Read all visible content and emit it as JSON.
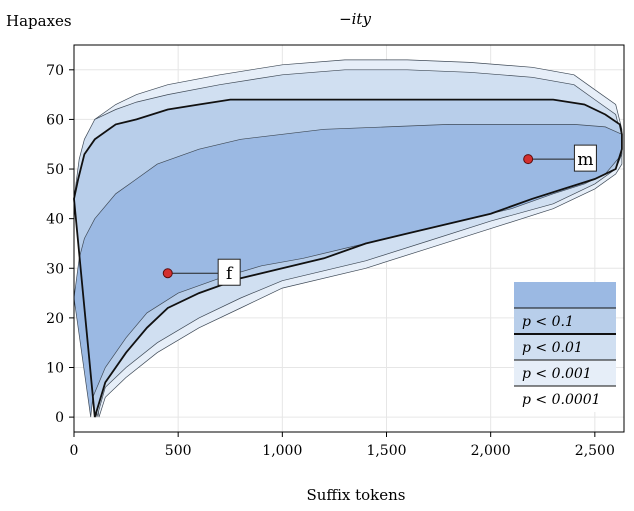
{
  "chart_data": {
    "type": "area",
    "title": "−ity",
    "xlabel": "Suffix tokens",
    "ylabel": "Hapaxes",
    "xlim": [
      0,
      2640
    ],
    "ylim": [
      -3,
      75
    ],
    "xticks": [
      0,
      500,
      1000,
      1500,
      2000,
      2500
    ],
    "xtick_labels": [
      "0",
      "500",
      "1,000",
      "1,500",
      "2,000",
      "2,500"
    ],
    "yticks": [
      0,
      10,
      20,
      30,
      40,
      50,
      60,
      70
    ],
    "ytick_labels": [
      "0",
      "10",
      "20",
      "30",
      "40",
      "50",
      "60",
      "70"
    ],
    "grid": true,
    "legend_position": "bottom-right",
    "bands": [
      {
        "name": "p < 0.0001",
        "color": "#e6eef8",
        "upper": [
          [
            0,
            43
          ],
          [
            25,
            50
          ],
          [
            50,
            55
          ],
          [
            100,
            60
          ],
          [
            200,
            63
          ],
          [
            300,
            65
          ],
          [
            450,
            67
          ],
          [
            700,
            69
          ],
          [
            1000,
            71
          ],
          [
            1300,
            72
          ],
          [
            1600,
            72
          ],
          [
            1900,
            71.5
          ],
          [
            2200,
            70.5
          ],
          [
            2400,
            69
          ],
          [
            2500,
            66
          ],
          [
            2600,
            63
          ],
          [
            2630,
            58
          ]
        ],
        "lower": [
          [
            2630,
            51
          ],
          [
            2600,
            49
          ],
          [
            2500,
            46
          ],
          [
            2300,
            42
          ],
          [
            2000,
            38
          ],
          [
            1700,
            34
          ],
          [
            1400,
            30
          ],
          [
            1000,
            26
          ],
          [
            800,
            22
          ],
          [
            600,
            18
          ],
          [
            400,
            13
          ],
          [
            250,
            8
          ],
          [
            150,
            4
          ],
          [
            120,
            0
          ]
        ]
      },
      {
        "name": "p < 0.001",
        "color": "#d0dff1",
        "upper": [
          [
            0,
            44
          ],
          [
            25,
            52
          ],
          [
            50,
            56
          ],
          [
            100,
            60
          ],
          [
            200,
            62
          ],
          [
            300,
            63.5
          ],
          [
            450,
            65
          ],
          [
            700,
            67
          ],
          [
            1000,
            69
          ],
          [
            1300,
            70
          ],
          [
            1600,
            70
          ],
          [
            1900,
            69.5
          ],
          [
            2200,
            68.5
          ],
          [
            2400,
            67
          ],
          [
            2500,
            64
          ],
          [
            2600,
            61
          ],
          [
            2630,
            56
          ]
        ],
        "lower": [
          [
            2630,
            53
          ],
          [
            2600,
            50
          ],
          [
            2500,
            47
          ],
          [
            2300,
            43
          ],
          [
            2000,
            39.5
          ],
          [
            1700,
            35.5
          ],
          [
            1400,
            31.5
          ],
          [
            1000,
            27.5
          ],
          [
            800,
            24
          ],
          [
            600,
            20
          ],
          [
            400,
            15
          ],
          [
            250,
            10
          ],
          [
            150,
            6
          ],
          [
            110,
            0
          ]
        ]
      },
      {
        "name": "p < 0.01",
        "color": "#b8ceea",
        "upper": [
          [
            0,
            44
          ],
          [
            20,
            48
          ],
          [
            50,
            53
          ],
          [
            100,
            56
          ],
          [
            200,
            59
          ],
          [
            300,
            60
          ],
          [
            450,
            62
          ],
          [
            600,
            63
          ],
          [
            750,
            64
          ],
          [
            1000,
            64
          ],
          [
            1500,
            64
          ],
          [
            2000,
            64
          ],
          [
            2300,
            64
          ],
          [
            2450,
            63
          ],
          [
            2550,
            61
          ],
          [
            2620,
            59
          ],
          [
            2630,
            57
          ]
        ],
        "lower": [
          [
            2630,
            54
          ],
          [
            2600,
            50
          ],
          [
            2500,
            48
          ],
          [
            2350,
            46
          ],
          [
            2200,
            44
          ],
          [
            2000,
            41
          ],
          [
            1800,
            39
          ],
          [
            1600,
            37
          ],
          [
            1400,
            35
          ],
          [
            1200,
            32
          ],
          [
            1000,
            30
          ],
          [
            800,
            28
          ],
          [
            600,
            25
          ],
          [
            450,
            22
          ],
          [
            350,
            18
          ],
          [
            250,
            13
          ],
          [
            150,
            7
          ],
          [
            100,
            0
          ]
        ]
      },
      {
        "name": "p < 0.1",
        "color": "#9bb9e3",
        "upper": [
          [
            0,
            24
          ],
          [
            25,
            32
          ],
          [
            50,
            36
          ],
          [
            100,
            40
          ],
          [
            200,
            45
          ],
          [
            300,
            48
          ],
          [
            400,
            51
          ],
          [
            600,
            54
          ],
          [
            800,
            56
          ],
          [
            1000,
            57
          ],
          [
            1200,
            58
          ],
          [
            1500,
            58.5
          ],
          [
            1800,
            59
          ],
          [
            2100,
            59
          ],
          [
            2400,
            59
          ],
          [
            2550,
            58.5
          ],
          [
            2630,
            57
          ]
        ],
        "lower": [
          [
            2630,
            53
          ],
          [
            2550,
            49
          ],
          [
            2450,
            47
          ],
          [
            2300,
            45
          ],
          [
            2100,
            42
          ],
          [
            1900,
            40
          ],
          [
            1700,
            38
          ],
          [
            1500,
            36
          ],
          [
            1300,
            34
          ],
          [
            1100,
            32
          ],
          [
            900,
            30.5
          ],
          [
            700,
            28
          ],
          [
            500,
            25
          ],
          [
            350,
            21
          ],
          [
            250,
            16
          ],
          [
            150,
            10
          ],
          [
            90,
            4
          ],
          [
            80,
            0
          ]
        ]
      }
    ],
    "points": [
      {
        "label": "f",
        "x": 450,
        "y": 29,
        "label_x": 740,
        "label_y": 29
      },
      {
        "label": "m",
        "x": 2180,
        "y": 52,
        "label_x": 2450,
        "label_y": 52
      }
    ],
    "legend": [
      "p < 0.1",
      "p < 0.01",
      "p < 0.001",
      "p < 0.0001"
    ]
  }
}
